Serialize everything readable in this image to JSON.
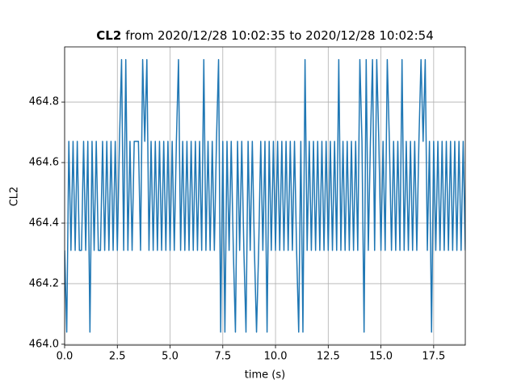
{
  "chart_data": {
    "type": "line",
    "title_name": "CL2",
    "title_range": "from 2020/12/28 10:02:35 to 2020/12/28 10:02:54",
    "xlabel": "time (s)",
    "ylabel": "CL2",
    "color": "#1f77b4",
    "grid": true,
    "xlim": [
      0,
      19
    ],
    "ylim": [
      463.997,
      464.982
    ],
    "xticks": [
      {
        "value": 0,
        "label": "0.0"
      },
      2.5,
      {
        "value": 5,
        "label": "5.0"
      },
      7.5,
      {
        "value": 10,
        "label": "10.0"
      },
      12.5,
      {
        "value": 15,
        "label": "15.0"
      },
      17.5
    ],
    "yticks": [
      {
        "value": 464,
        "label": "464.0"
      },
      464.2,
      464.4,
      464.6,
      464.8
    ],
    "x": [
      0,
      0.1,
      0.2,
      0.3,
      0.4,
      0.5,
      0.6,
      0.7,
      0.8,
      0.9,
      1,
      1.1,
      1.2,
      1.3,
      1.4,
      1.5,
      1.6,
      1.7,
      1.8,
      1.9,
      2,
      2.1,
      2.2,
      2.3,
      2.4,
      2.5,
      2.6,
      2.7,
      2.8,
      2.9,
      3,
      3.1,
      3.2,
      3.3,
      3.4,
      3.5,
      3.6,
      3.7,
      3.8,
      3.9,
      4,
      4.1,
      4.2,
      4.3,
      4.4,
      4.5,
      4.6,
      4.7,
      4.8,
      4.9,
      5,
      5.1,
      5.2,
      5.3,
      5.4,
      5.5,
      5.6,
      5.7,
      5.8,
      5.9,
      6,
      6.1,
      6.2,
      6.3,
      6.4,
      6.5,
      6.6,
      6.7,
      6.8,
      6.9,
      7,
      7.1,
      7.2,
      7.3,
      7.4,
      7.5,
      7.6,
      7.7,
      7.8,
      7.9,
      8,
      8.1,
      8.2,
      8.3,
      8.4,
      8.5,
      8.6,
      8.7,
      8.8,
      8.9,
      9,
      9.1,
      9.2,
      9.3,
      9.4,
      9.5,
      9.6,
      9.7,
      9.8,
      9.9,
      10,
      10.1,
      10.2,
      10.3,
      10.4,
      10.5,
      10.6,
      10.7,
      10.8,
      10.9,
      11,
      11.1,
      11.2,
      11.3,
      11.4,
      11.5,
      11.6,
      11.7,
      11.8,
      11.9,
      12,
      12.1,
      12.2,
      12.3,
      12.4,
      12.5,
      12.6,
      12.7,
      12.8,
      12.9,
      13,
      13.1,
      13.2,
      13.3,
      13.4,
      13.5,
      13.6,
      13.7,
      13.8,
      13.9,
      14,
      14.1,
      14.2,
      14.3,
      14.4,
      14.5,
      14.6,
      14.7,
      14.8,
      14.9,
      15,
      15.1,
      15.2,
      15.3,
      15.4,
      15.5,
      15.6,
      15.7,
      15.8,
      15.9,
      16,
      16.1,
      16.2,
      16.3,
      16.4,
      16.5,
      16.6,
      16.7,
      16.8,
      16.9,
      17,
      17.1,
      17.2,
      17.3,
      17.4,
      17.5,
      17.6,
      17.7,
      17.8,
      17.9,
      18,
      18.1,
      18.2,
      18.3,
      18.4,
      18.5,
      18.6,
      18.7,
      18.8,
      18.9,
      19
    ],
    "values": [
      464.31,
      464.04,
      464.67,
      464.31,
      464.67,
      464.31,
      464.67,
      464.31,
      464.31,
      464.67,
      464.31,
      464.67,
      464.04,
      464.67,
      464.31,
      464.67,
      464.31,
      464.31,
      464.67,
      464.31,
      464.67,
      464.31,
      464.67,
      464.31,
      464.67,
      464.31,
      464.67,
      464.94,
      464.31,
      464.94,
      464.31,
      464.67,
      464.31,
      464.67,
      464.67,
      464.67,
      464.31,
      464.94,
      464.67,
      464.94,
      464.31,
      464.67,
      464.31,
      464.67,
      464.31,
      464.67,
      464.31,
      464.67,
      464.31,
      464.67,
      464.31,
      464.67,
      464.31,
      464.67,
      464.94,
      464.31,
      464.67,
      464.31,
      464.67,
      464.31,
      464.67,
      464.31,
      464.67,
      464.31,
      464.67,
      464.31,
      464.94,
      464.31,
      464.67,
      464.31,
      464.67,
      464.31,
      464.67,
      464.94,
      464.04,
      464.67,
      464.04,
      464.67,
      464.31,
      464.67,
      464.31,
      464.04,
      464.67,
      464.31,
      464.67,
      464.31,
      464.04,
      464.67,
      464.31,
      464.67,
      464.31,
      464.04,
      464.31,
      464.67,
      464.31,
      464.67,
      464.04,
      464.67,
      464.31,
      464.67,
      464.31,
      464.67,
      464.31,
      464.67,
      464.31,
      464.67,
      464.31,
      464.67,
      464.31,
      464.67,
      464.31,
      464.04,
      464.67,
      464.04,
      464.94,
      464.31,
      464.67,
      464.31,
      464.67,
      464.31,
      464.67,
      464.31,
      464.67,
      464.31,
      464.67,
      464.31,
      464.67,
      464.31,
      464.67,
      464.31,
      464.94,
      464.31,
      464.67,
      464.31,
      464.67,
      464.31,
      464.67,
      464.31,
      464.67,
      464.31,
      464.94,
      464.67,
      464.04,
      464.94,
      464.31,
      464.67,
      464.94,
      464.31,
      464.94,
      464.67,
      464.31,
      464.67,
      464.31,
      464.94,
      464.67,
      464.31,
      464.67,
      464.31,
      464.67,
      464.31,
      464.94,
      464.31,
      464.67,
      464.31,
      464.67,
      464.31,
      464.67,
      464.31,
      464.67,
      464.94,
      464.67,
      464.94,
      464.31,
      464.67,
      464.04,
      464.67,
      464.31,
      464.67,
      464.31,
      464.67,
      464.31,
      464.67,
      464.31,
      464.67,
      464.31,
      464.67,
      464.31,
      464.67,
      464.31,
      464.67,
      464.31
    ]
  }
}
